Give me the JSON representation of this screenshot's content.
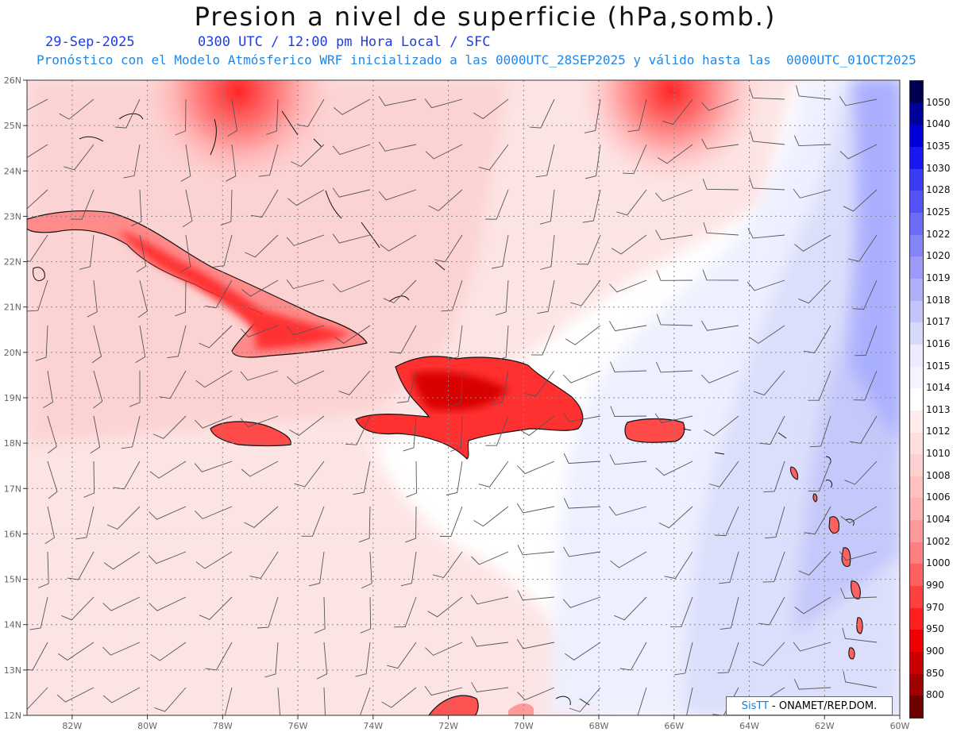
{
  "header": {
    "title": "Presion a nivel de superficie (hPa,somb.)",
    "date": "29-Sep-2025",
    "time_info": "0300 UTC / 12:00 pm Hora Local / SFC",
    "model_info": "Pronóstico con el Modelo Atmósferico WRF inicializado a las 0000UTC_28SEP2025 y válido hasta las  0000UTC_01OCT2025"
  },
  "map": {
    "lat_labels": [
      "26N",
      "25N",
      "24N",
      "23N",
      "22N",
      "21N",
      "20N",
      "19N",
      "18N",
      "17N",
      "16N",
      "15N",
      "14N",
      "13N",
      "12N"
    ],
    "lon_labels": [
      "82W",
      "80W",
      "78W",
      "76W",
      "74W",
      "72W",
      "70W",
      "68W",
      "66W",
      "64W",
      "62W",
      "60W"
    ],
    "lat_range": [
      12,
      26
    ],
    "lon_range": [
      -83.2,
      -60
    ],
    "colors": {
      "low": "#ff0000",
      "neutral": "#ffffff",
      "high": "#6a74ff"
    }
  },
  "legend": {
    "labels": [
      "1050",
      "1040",
      "1035",
      "1030",
      "1028",
      "1025",
      "1022",
      "1020",
      "1019",
      "1018",
      "1017",
      "1016",
      "1015",
      "1014",
      "1013",
      "1012",
      "1010",
      "1008",
      "1006",
      "1004",
      "1002",
      "1000",
      "990",
      "970",
      "950",
      "900",
      "850",
      "800"
    ],
    "colors": [
      "#000050",
      "#00009a",
      "#0000d8",
      "#1818f0",
      "#3c3cf4",
      "#5454f6",
      "#6c6cf6",
      "#8484f6",
      "#9c9cf8",
      "#b0b0f8",
      "#c4c4fa",
      "#d8d8fc",
      "#ececfe",
      "#f4f4ff",
      "#ffffff",
      "#ffecec",
      "#ffdede",
      "#ffd0d0",
      "#ffc0c0",
      "#ffb0b0",
      "#ff9a9a",
      "#ff8080",
      "#ff6060",
      "#ff4040",
      "#ff2020",
      "#f00000",
      "#c80000",
      "#a00000",
      "#700000"
    ]
  },
  "credit": {
    "logo": "SisTT",
    "text": "- ONAMET/REP.DOM."
  }
}
